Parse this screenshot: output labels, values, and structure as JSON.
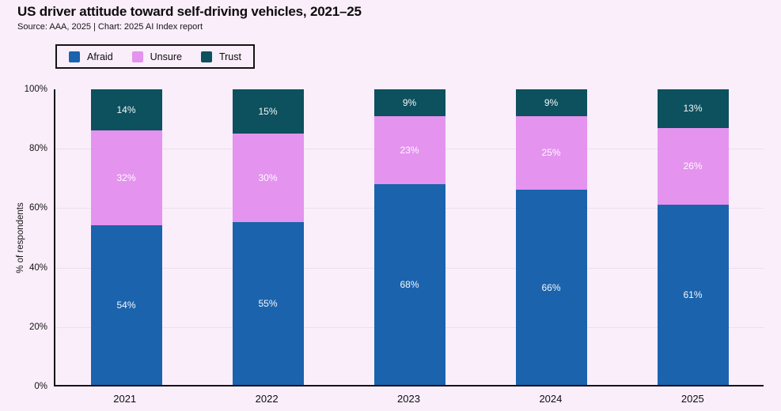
{
  "page": {
    "background_color": "#faeefb",
    "axis_color": "#141414",
    "gridline_color": "#ecdeee"
  },
  "header": {
    "title": "US driver attitude toward self-driving vehicles, 2021–25",
    "subtitle": "Source: AAA, 2025 | Chart: 2025 AI Index report"
  },
  "chart_data": {
    "type": "bar",
    "stacked": true,
    "title": "US driver attitude toward self-driving vehicles, 2021–25",
    "subtitle": "Source: AAA, 2025 | Chart: 2025 AI Index report",
    "categories": [
      "2021",
      "2022",
      "2023",
      "2024",
      "2025"
    ],
    "series": [
      {
        "name": "Afraid",
        "color": "#1b63ad",
        "values": [
          54,
          55,
          68,
          66,
          61
        ]
      },
      {
        "name": "Unsure",
        "color": "#e493ee",
        "values": [
          32,
          30,
          23,
          25,
          26
        ]
      },
      {
        "name": "Trust",
        "color": "#0d505e",
        "values": [
          14,
          15,
          9,
          9,
          13
        ]
      }
    ],
    "value_suffix": "%",
    "xlabel": "",
    "ylabel": "% of respondents",
    "ylim": [
      0,
      100
    ],
    "yticks": [
      "0%",
      "20%",
      "40%",
      "60%",
      "80%",
      "100%"
    ],
    "grid": true,
    "legend_position": "top-left",
    "bar_label_color": "#ffffff"
  }
}
